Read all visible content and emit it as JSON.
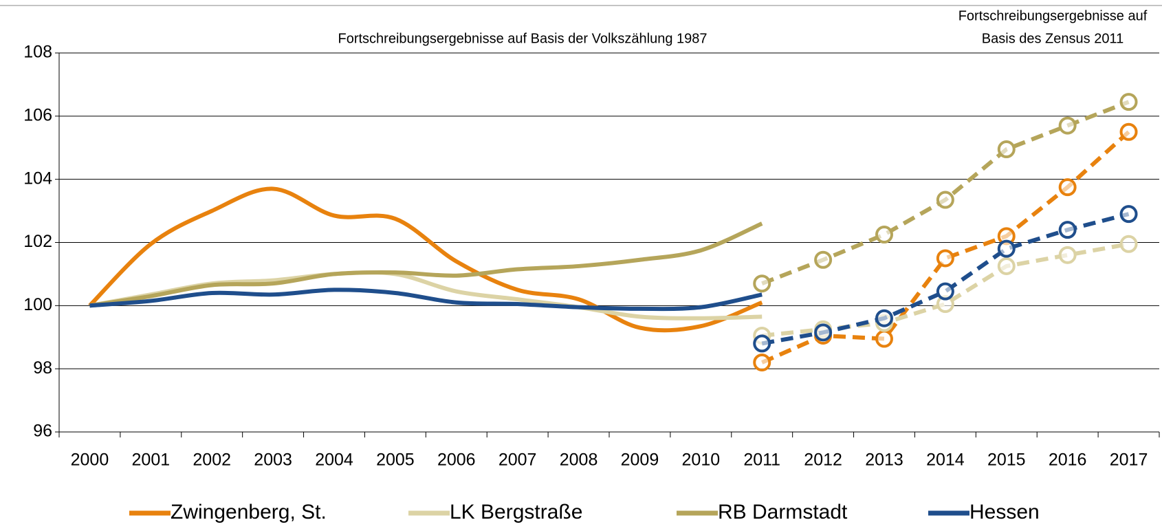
{
  "chart_data": {
    "type": "line",
    "annotations": [
      "Fortschreibungsergebnisse auf Basis der Volkszählung 1987",
      "Fortschreibungsergebnisse auf",
      "Basis des Zensus 2011"
    ],
    "categories": [
      "2000",
      "2001",
      "2002",
      "2003",
      "2004",
      "2005",
      "2006",
      "2007",
      "2008",
      "2009",
      "2010",
      "2011",
      "2012",
      "2013",
      "2014",
      "2015",
      "2016",
      "2017"
    ],
    "ylim": [
      96,
      108
    ],
    "yticks": [
      96,
      98,
      100,
      102,
      104,
      106,
      108
    ],
    "grid": true,
    "series": [
      {
        "name": "Zwingenberg, St.",
        "color": "#e8820e",
        "values": [
          100,
          101.95,
          103.0,
          103.7,
          102.85,
          102.75,
          101.4,
          100.5,
          100.2,
          99.3,
          99.35,
          100.1,
          null,
          null,
          null,
          null,
          null,
          null
        ],
        "census_values": [
          null,
          null,
          null,
          null,
          null,
          null,
          null,
          null,
          null,
          null,
          null,
          98.2,
          99.05,
          98.95,
          101.5,
          102.2,
          103.75,
          105.5
        ]
      },
      {
        "name": "LK Bergstraße",
        "color": "#dcd3a5",
        "values": [
          100,
          100.35,
          100.7,
          100.8,
          101.0,
          101.0,
          100.45,
          100.2,
          99.95,
          99.65,
          99.6,
          99.65,
          null,
          null,
          null,
          null,
          null,
          null
        ],
        "census_values": [
          null,
          null,
          null,
          null,
          null,
          null,
          null,
          null,
          null,
          null,
          null,
          99.05,
          99.25,
          99.45,
          100.05,
          101.25,
          101.6,
          101.95
        ]
      },
      {
        "name": "RB Darmstadt",
        "color": "#b5a55a",
        "values": [
          100,
          100.3,
          100.65,
          100.7,
          101.0,
          101.05,
          100.95,
          101.15,
          101.25,
          101.45,
          101.75,
          102.6,
          null,
          null,
          null,
          null,
          null,
          null
        ],
        "census_values": [
          null,
          null,
          null,
          null,
          null,
          null,
          null,
          null,
          null,
          null,
          null,
          100.7,
          101.45,
          102.25,
          103.35,
          104.95,
          105.7,
          106.45
        ]
      },
      {
        "name": "Hessen",
        "color": "#1f4e8c",
        "values": [
          100,
          100.15,
          100.4,
          100.35,
          100.5,
          100.4,
          100.1,
          100.05,
          99.95,
          99.9,
          99.95,
          100.35,
          null,
          null,
          null,
          null,
          null,
          null
        ],
        "census_values": [
          null,
          null,
          null,
          null,
          null,
          null,
          null,
          null,
          null,
          null,
          null,
          98.8,
          99.15,
          99.6,
          100.45,
          101.8,
          102.4,
          102.9
        ]
      }
    ]
  }
}
